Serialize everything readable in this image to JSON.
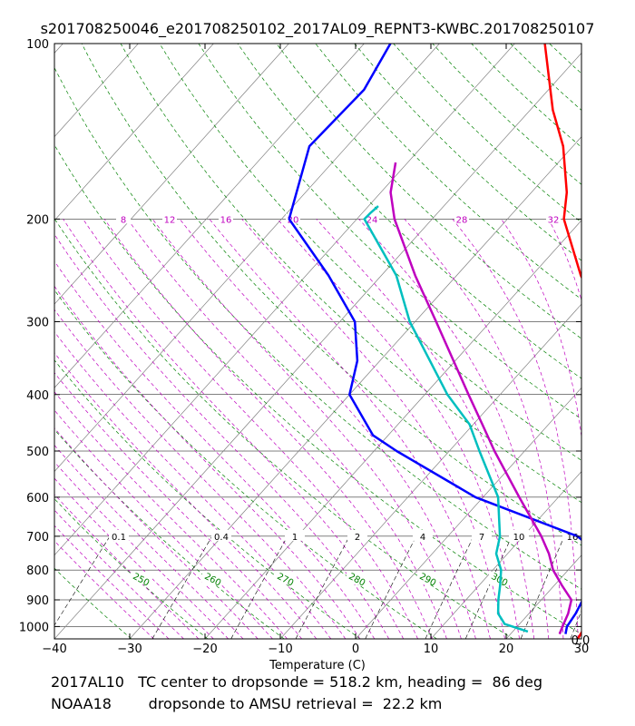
{
  "chart_data": {
    "type": "line",
    "title": "s201708250046_e201708250102_2017AL09_REPNT3-KWBC.201708250107",
    "xlabel": "Temperature (C)",
    "ylabel": "",
    "xlim": [
      -40,
      30
    ],
    "ylim_pressure": [
      1050,
      100
    ],
    "y_scale": "log",
    "skew": true,
    "grid": true,
    "x_ticks": [
      "−40",
      "−30",
      "−20",
      "−10",
      "0",
      "10",
      "20",
      "30"
    ],
    "y_ticks": [
      "100",
      "200",
      "300",
      "400",
      "500",
      "600",
      "700",
      "800",
      "900",
      "1000"
    ],
    "mixing_ratio_labels_700": [
      "0.1",
      "0.4",
      "1",
      "2",
      "4",
      "7",
      "10",
      "16"
    ],
    "dry_adiabat_labels": [
      "250",
      "260",
      "270",
      "280",
      "290",
      "300"
    ],
    "moist_adiabat_labels_200": [
      "8",
      "12",
      "16",
      "20",
      "24",
      "28",
      "32"
    ],
    "corner_label": "0.0",
    "colors": {
      "dropsonde_temperature": "#ff0000",
      "amsu_temperature": "#0000ff",
      "dropsonde_dewpoint": "#00bfbf",
      "amsu_dewpoint": "#bf00bf",
      "dry_adiabats": "#008000",
      "moist_adiabats": "#bf00bf",
      "mixing_ratio": "#000000",
      "isotherms": "#808080"
    },
    "series": [
      {
        "key": "red",
        "points": [
          [
            1050,
            29.5
          ],
          [
            1000,
            29
          ],
          [
            950,
            29.3
          ],
          [
            900,
            29.2
          ],
          [
            850,
            28.4
          ],
          [
            800,
            27.5
          ],
          [
            700,
            25
          ],
          [
            600,
            20.8
          ],
          [
            500,
            16
          ],
          [
            400,
            8.4
          ],
          [
            350,
            2.2
          ],
          [
            300,
            -5
          ],
          [
            250,
            -13.5
          ],
          [
            200,
            -22.5
          ],
          [
            180,
            -25.3
          ],
          [
            150,
            -31.3
          ],
          [
            130,
            -37
          ],
          [
            100,
            -46
          ]
        ]
      },
      {
        "key": "blue",
        "points": [
          [
            1030,
            27.3
          ],
          [
            1000,
            26.6
          ],
          [
            950,
            26.2
          ],
          [
            900,
            25.5
          ],
          [
            850,
            25.7
          ],
          [
            800,
            25.5
          ],
          [
            750,
            22
          ],
          [
            700,
            17.2
          ],
          [
            600,
            -1
          ],
          [
            500,
            -17
          ],
          [
            470,
            -22
          ],
          [
            400,
            -30
          ],
          [
            350,
            -33
          ],
          [
            300,
            -38
          ],
          [
            250,
            -47
          ],
          [
            200,
            -59
          ],
          [
            150,
            -65
          ],
          [
            120,
            -64.5
          ],
          [
            100,
            -66.5
          ]
        ]
      },
      {
        "key": "cyan",
        "points": [
          [
            1020,
            22
          ],
          [
            990,
            18
          ],
          [
            980,
            17.5
          ],
          [
            950,
            15.9
          ],
          [
            900,
            14.3
          ],
          [
            850,
            12.8
          ],
          [
            800,
            11.1
          ],
          [
            750,
            8.5
          ],
          [
            700,
            6.9
          ],
          [
            600,
            2
          ],
          [
            500,
            -6
          ],
          [
            450,
            -10.5
          ],
          [
            400,
            -17
          ],
          [
            300,
            -30.7
          ],
          [
            250,
            -38
          ],
          [
            200,
            -49
          ],
          [
            195,
            -48.9
          ],
          [
            190,
            -48.7
          ]
        ]
      },
      {
        "key": "magenta",
        "points": [
          [
            1030,
            26.5
          ],
          [
            1000,
            26
          ],
          [
            950,
            25.2
          ],
          [
            900,
            24
          ],
          [
            850,
            21
          ],
          [
            800,
            18
          ],
          [
            750,
            15.5
          ],
          [
            700,
            12.4
          ],
          [
            600,
            4.8
          ],
          [
            500,
            -4
          ],
          [
            450,
            -8.8
          ],
          [
            400,
            -14.2
          ],
          [
            300,
            -27.2
          ],
          [
            250,
            -35.5
          ],
          [
            200,
            -45
          ],
          [
            180,
            -48.7
          ],
          [
            160,
            -51.6
          ]
        ]
      }
    ]
  },
  "captions": {
    "line1": "2017AL10   TC center to dropsonde = 518.2 km, heading =  86 deg",
    "line2": "NOAA18        dropsonde to AMSU retrieval =  22.2 km"
  }
}
